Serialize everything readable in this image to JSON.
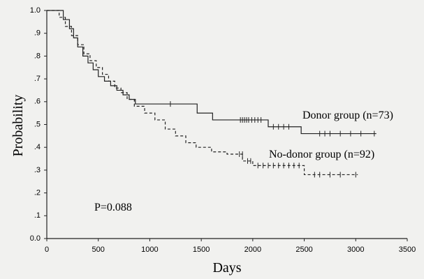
{
  "chart_data": {
    "type": "step",
    "xlabel": "Days",
    "ylabel": "Probability",
    "annotation": "P=0.088",
    "xlim": [
      0,
      3500
    ],
    "xticks": [
      0,
      500,
      1000,
      1500,
      2000,
      2500,
      3000,
      3500
    ],
    "ylim": [
      0,
      1.0
    ],
    "yticks": [
      {
        "value": 0,
        "label": "0.0"
      },
      {
        "value": 0.1,
        "label": ".1"
      },
      {
        "value": 0.2,
        "label": ".2"
      },
      {
        "value": 0.3,
        "label": ".3"
      },
      {
        "value": 0.4,
        "label": ".4"
      },
      {
        "value": 0.5,
        "label": ".5"
      },
      {
        "value": 0.6,
        "label": ".6"
      },
      {
        "value": 0.7,
        "label": ".7"
      },
      {
        "value": 0.8,
        "label": ".8"
      },
      {
        "value": 0.9,
        "label": ".9"
      },
      {
        "value": 1.0,
        "label": "1.0"
      }
    ],
    "series": [
      {
        "name": "Donor group (n=73)",
        "color": "#222222",
        "dash": false,
        "x": [
          0,
          160,
          220,
          260,
          300,
          350,
          400,
          450,
          500,
          560,
          620,
          680,
          740,
          800,
          860,
          1460,
          1610,
          2150,
          2470,
          3200
        ],
        "values": [
          1.0,
          0.96,
          0.92,
          0.88,
          0.84,
          0.8,
          0.77,
          0.74,
          0.71,
          0.69,
          0.67,
          0.65,
          0.63,
          0.61,
          0.59,
          0.55,
          0.52,
          0.49,
          0.46,
          0.46
        ],
        "censored_x": [
          1200,
          1880,
          1900,
          1920,
          1940,
          1960,
          1990,
          2020,
          2050,
          2080,
          2200,
          2250,
          2300,
          2350,
          2650,
          2700,
          2750,
          2850,
          2950,
          3050,
          3180
        ],
        "censored_values": [
          0.59,
          0.52,
          0.52,
          0.52,
          0.52,
          0.52,
          0.52,
          0.52,
          0.52,
          0.52,
          0.49,
          0.49,
          0.49,
          0.49,
          0.46,
          0.46,
          0.46,
          0.46,
          0.46,
          0.46,
          0.46
        ]
      },
      {
        "name": "No-donor group (n=92)",
        "color": "#222222",
        "dash": true,
        "x": [
          0,
          120,
          180,
          240,
          300,
          360,
          420,
          480,
          540,
          600,
          660,
          720,
          780,
          850,
          950,
          1050,
          1150,
          1250,
          1350,
          1450,
          1600,
          1750,
          1900,
          2000,
          2500,
          3020
        ],
        "values": [
          1.0,
          0.97,
          0.93,
          0.89,
          0.85,
          0.81,
          0.78,
          0.75,
          0.72,
          0.69,
          0.66,
          0.64,
          0.61,
          0.58,
          0.55,
          0.52,
          0.48,
          0.45,
          0.42,
          0.4,
          0.38,
          0.37,
          0.34,
          0.32,
          0.28,
          0.28
        ],
        "censored_x": [
          1870,
          1900,
          1950,
          1980,
          2050,
          2100,
          2150,
          2200,
          2250,
          2300,
          2350,
          2400,
          2450,
          2600,
          2650,
          2750,
          2850,
          3000
        ],
        "censored_values": [
          0.37,
          0.37,
          0.34,
          0.34,
          0.32,
          0.32,
          0.32,
          0.32,
          0.32,
          0.32,
          0.32,
          0.32,
          0.32,
          0.28,
          0.28,
          0.28,
          0.28,
          0.28
        ]
      }
    ]
  }
}
